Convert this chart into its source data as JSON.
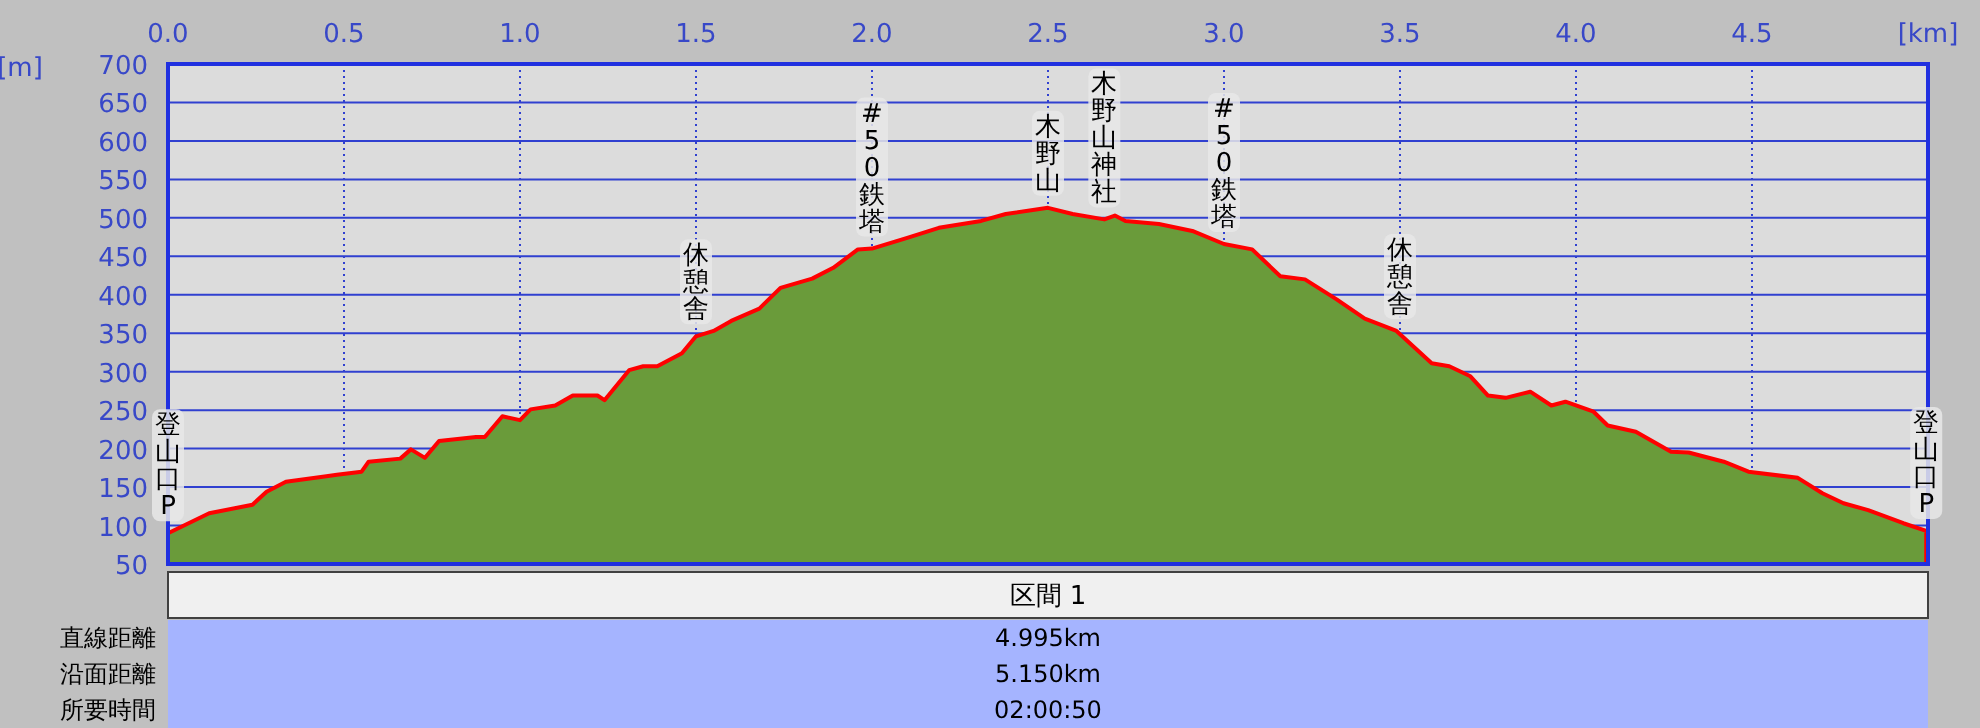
{
  "chart_data": {
    "type": "area",
    "xlabel": "[km]",
    "ylabel": "[m]",
    "x": [
      0,
      0.117,
      0.24,
      0.28,
      0.335,
      0.45,
      0.48,
      0.55,
      0.57,
      0.66,
      0.69,
      0.73,
      0.77,
      0.875,
      0.9,
      0.95,
      1.0,
      1.03,
      1.1,
      1.15,
      1.22,
      1.24,
      1.31,
      1.35,
      1.39,
      1.46,
      1.5,
      1.55,
      1.6,
      1.68,
      1.74,
      1.83,
      1.89,
      1.96,
      2.0,
      2.1,
      2.19,
      2.31,
      2.38,
      2.5,
      2.57,
      2.66,
      2.69,
      2.72,
      2.815,
      2.91,
      3.0,
      3.08,
      3.16,
      3.23,
      3.32,
      3.4,
      3.49,
      3.59,
      3.64,
      3.7,
      3.75,
      3.8,
      3.87,
      3.93,
      3.97,
      4.05,
      4.09,
      4.17,
      4.27,
      4.32,
      4.42,
      4.49,
      4.63,
      4.7,
      4.76,
      4.83,
      4.93,
      4.995
    ],
    "series": [
      {
        "color": "#6a9b3a",
        "values": [
          90,
          116,
          127,
          144,
          157,
          164,
          166,
          170,
          183,
          187,
          199,
          188,
          210,
          215,
          215,
          242,
          237,
          251,
          256,
          269,
          269,
          263,
          302,
          307,
          307,
          324,
          346,
          353,
          366,
          382,
          409,
          421,
          435,
          459,
          460,
          474,
          487,
          496,
          505,
          513,
          505,
          498,
          503,
          496,
          492,
          483,
          466,
          459,
          424,
          420,
          394,
          369,
          353,
          311,
          307,
          294,
          269,
          266,
          274,
          256,
          261,
          248,
          230,
          222,
          196,
          195,
          183,
          170,
          162,
          142,
          129,
          120,
          103,
          93
        ]
      }
    ],
    "xlim": [
      0,
      5
    ],
    "ylim": [
      50,
      700
    ],
    "xticks": [
      {
        "value": 0,
        "label": "0.0"
      },
      0.5,
      {
        "value": 1,
        "label": "1.0"
      },
      1.5,
      {
        "value": 2,
        "label": "2.0"
      },
      2.5,
      {
        "value": 3,
        "label": "3.0"
      },
      3.5,
      {
        "value": 4,
        "label": "4.0"
      },
      4.5
    ],
    "yticks": [
      50,
      100,
      150,
      200,
      250,
      300,
      350,
      400,
      450,
      500,
      550,
      600,
      650,
      700
    ],
    "grid": true,
    "annotations": [
      {
        "text": "登山口P",
        "x": 0,
        "y": 90
      },
      {
        "text": "休憩舎",
        "x": 1.5,
        "y": 346
      },
      {
        "text": "#50鉄塔",
        "x": 2.0,
        "y": 460
      },
      {
        "text": "木野山",
        "x": 2.5,
        "y": 513
      },
      {
        "text": "木野山神社",
        "x": 2.66,
        "y": 498
      },
      {
        "text": "#50鉄塔",
        "x": 3.0,
        "y": 466
      },
      {
        "text": "休憩舎",
        "x": 3.5,
        "y": 353
      },
      {
        "text": "登山口P",
        "x": 4.995,
        "y": 93
      },
      "区間 1",
      "直線距離",
      "4.995km",
      "沿面距離",
      "5.150km",
      "所要時間",
      "02:00:50"
    ]
  }
}
